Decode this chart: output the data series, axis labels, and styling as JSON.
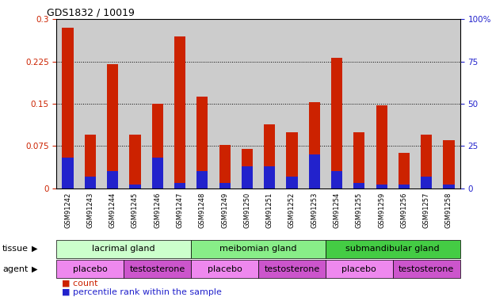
{
  "title": "GDS1832 / 10019",
  "samples": [
    "GSM91242",
    "GSM91243",
    "GSM91244",
    "GSM91245",
    "GSM91246",
    "GSM91247",
    "GSM91248",
    "GSM91249",
    "GSM91250",
    "GSM91251",
    "GSM91252",
    "GSM91253",
    "GSM91254",
    "GSM91255",
    "GSM91259",
    "GSM91256",
    "GSM91257",
    "GSM91258"
  ],
  "count_values": [
    0.285,
    0.095,
    0.22,
    0.095,
    0.15,
    0.27,
    0.163,
    0.077,
    0.07,
    0.113,
    0.1,
    0.153,
    0.232,
    0.1,
    0.147,
    0.063,
    0.095,
    0.085
  ],
  "pct_values": [
    18,
    7,
    10,
    2,
    18,
    3,
    10,
    3,
    13,
    13,
    7,
    20,
    10,
    3,
    2,
    2,
    7,
    2
  ],
  "count_color": "#cc2200",
  "pct_color": "#2222cc",
  "ylim_left": [
    0,
    0.3
  ],
  "ylim_right": [
    0,
    100
  ],
  "yticks_left": [
    0,
    0.075,
    0.15,
    0.225,
    0.3
  ],
  "ytick_labels_left": [
    "0",
    "0.075",
    "0.15",
    "0.225",
    "0.3"
  ],
  "yticks_right": [
    0,
    25,
    50,
    75,
    100
  ],
  "ytick_labels_right": [
    "0",
    "25",
    "50",
    "75",
    "100%"
  ],
  "tissue_groups": [
    {
      "label": "lacrimal gland",
      "start": 0,
      "end": 6,
      "color": "#ccffcc"
    },
    {
      "label": "meibomian gland",
      "start": 6,
      "end": 12,
      "color": "#88ee88"
    },
    {
      "label": "submandibular gland",
      "start": 12,
      "end": 18,
      "color": "#44cc44"
    }
  ],
  "agent_groups": [
    {
      "label": "placebo",
      "start": 0,
      "end": 3,
      "color": "#ee88ee"
    },
    {
      "label": "testosterone",
      "start": 3,
      "end": 6,
      "color": "#cc55cc"
    },
    {
      "label": "placebo",
      "start": 6,
      "end": 9,
      "color": "#ee88ee"
    },
    {
      "label": "testosterone",
      "start": 9,
      "end": 12,
      "color": "#cc55cc"
    },
    {
      "label": "placebo",
      "start": 12,
      "end": 15,
      "color": "#ee88ee"
    },
    {
      "label": "testosterone",
      "start": 15,
      "end": 18,
      "color": "#cc55cc"
    }
  ],
  "bar_width": 0.5,
  "bg_color": "#cccccc",
  "fig_bg_color": "#ffffff",
  "tick_label_color_left": "#cc2200",
  "tick_label_color_right": "#2222cc",
  "title_fontsize": 9,
  "label_fontsize": 8,
  "tick_fontsize": 7.5,
  "sample_fontsize": 6
}
